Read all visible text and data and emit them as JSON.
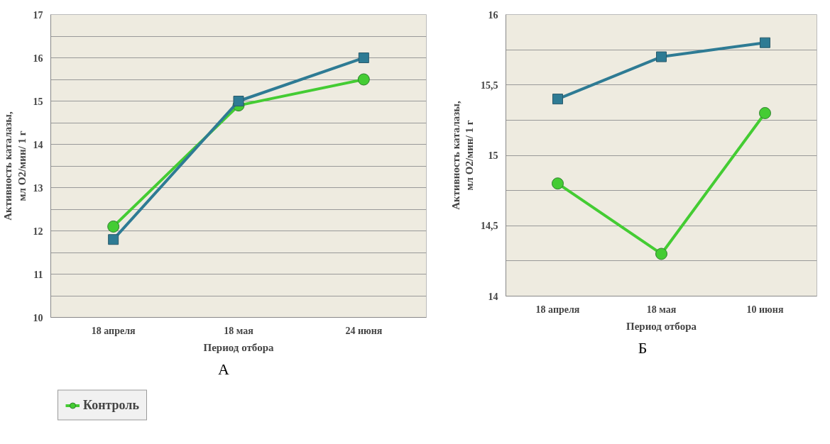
{
  "chart_data": [
    {
      "type": "line",
      "xlabel": "Период отбора",
      "ylabel": "Активность каталазы,\nмл О2/мин/ 1 г",
      "annotations": [
        "А"
      ],
      "categories": [
        "18 апреля",
        "18 мая",
        "24 июня"
      ],
      "series": [
        {
          "name": "Контроль",
          "color": "#44cc33",
          "marker": "circle",
          "values": [
            12.1,
            14.9,
            15.5
          ]
        },
        {
          "color": "#2e7b94",
          "marker": "square",
          "values": [
            11.8,
            15.0,
            16.0
          ]
        }
      ],
      "ylim": [
        10,
        17
      ],
      "yticks": [
        10,
        {
          "value": 10.5,
          "label": null
        },
        11,
        {
          "value": 11.5,
          "label": null
        },
        12,
        {
          "value": 12.5,
          "label": null
        },
        13,
        {
          "value": 13.5,
          "label": null
        },
        14,
        {
          "value": 14.5,
          "label": null
        },
        15,
        {
          "value": 15.5,
          "label": null
        },
        16,
        {
          "value": 16.5,
          "label": null
        },
        17
      ],
      "grid": "y",
      "legend": "bottom left"
    },
    {
      "type": "line",
      "xlabel": "Период отбора",
      "ylabel": "Активность каталазы,\nмл О2/мин/ 1 г",
      "annotations": [
        "Б"
      ],
      "categories": [
        "18 апреля",
        "18 мая",
        "10 июня"
      ],
      "series": [
        {
          "color": "#44cc33",
          "marker": "circle",
          "values": [
            14.8,
            14.3,
            15.3
          ]
        },
        {
          "color": "#2e7b94",
          "marker": "square",
          "values": [
            15.4,
            15.7,
            15.8
          ]
        }
      ],
      "ylim": [
        14,
        16
      ],
      "yticks": [
        14,
        {
          "value": 14.25,
          "label": null
        },
        {
          "value": 14.5,
          "label": "14,5"
        },
        {
          "value": 14.75,
          "label": null
        },
        15,
        {
          "value": 15.25,
          "label": null
        },
        {
          "value": 15.5,
          "label": "15,5"
        },
        {
          "value": 15.75,
          "label": null
        },
        16
      ],
      "grid": "y",
      "legend": false
    }
  ]
}
